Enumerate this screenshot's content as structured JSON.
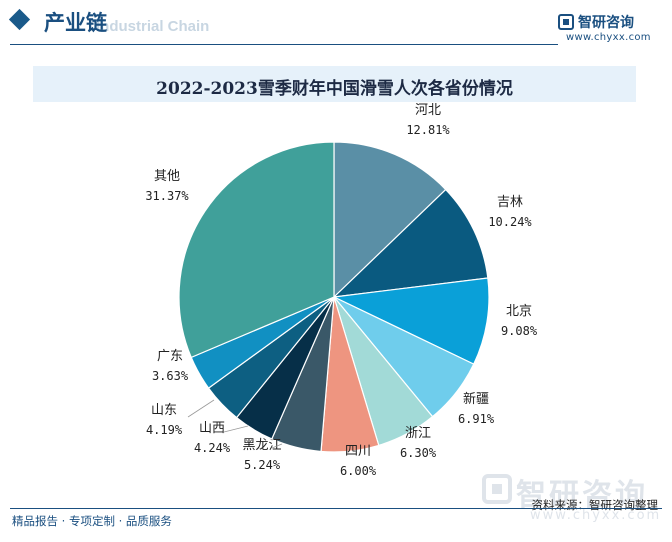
{
  "header": {
    "title": "产业链",
    "subtitle": "Industrial Chain"
  },
  "brand": {
    "name": "智研咨询",
    "url": "www.chyxx.com"
  },
  "chart_data": {
    "type": "pie",
    "title": "2022-2023雪季财年中国滑雪人次各省份情况",
    "start_angle_deg": 0,
    "direction": "clockwise",
    "slices": [
      {
        "label": "河北",
        "value": 12.81,
        "display": "12.81%",
        "color": "#5a8fa6"
      },
      {
        "label": "吉林",
        "value": 10.24,
        "display": "10.24%",
        "color": "#0a5a80"
      },
      {
        "label": "北京",
        "value": 9.08,
        "display": "9.08%",
        "color": "#0aa0d8"
      },
      {
        "label": "新疆",
        "value": 6.91,
        "display": "6.91%",
        "color": "#6fcdec"
      },
      {
        "label": "浙江",
        "value": 6.3,
        "display": "6.30%",
        "color": "#a2dad7"
      },
      {
        "label": "四川",
        "value": 6.0,
        "display": "6.00%",
        "color": "#ee9580"
      },
      {
        "label": "黑龙江",
        "value": 5.24,
        "display": "5.24%",
        "color": "#3a5868"
      },
      {
        "label": "山西",
        "value": 4.24,
        "display": "4.24%",
        "color": "#062f48"
      },
      {
        "label": "山东",
        "value": 4.19,
        "display": "4.19%",
        "color": "#0d5f82"
      },
      {
        "label": "广东",
        "value": 3.63,
        "display": "3.63%",
        "color": "#1190c2"
      },
      {
        "label": "其他",
        "value": 31.37,
        "display": "31.37%",
        "color": "#40a09a"
      }
    ]
  },
  "watermark": {
    "name": "智研咨询",
    "url": "www.chyxx.com"
  },
  "source": "资料来源：智研咨询整理",
  "footer": "精品报告 · 专项定制 · 品质服务"
}
